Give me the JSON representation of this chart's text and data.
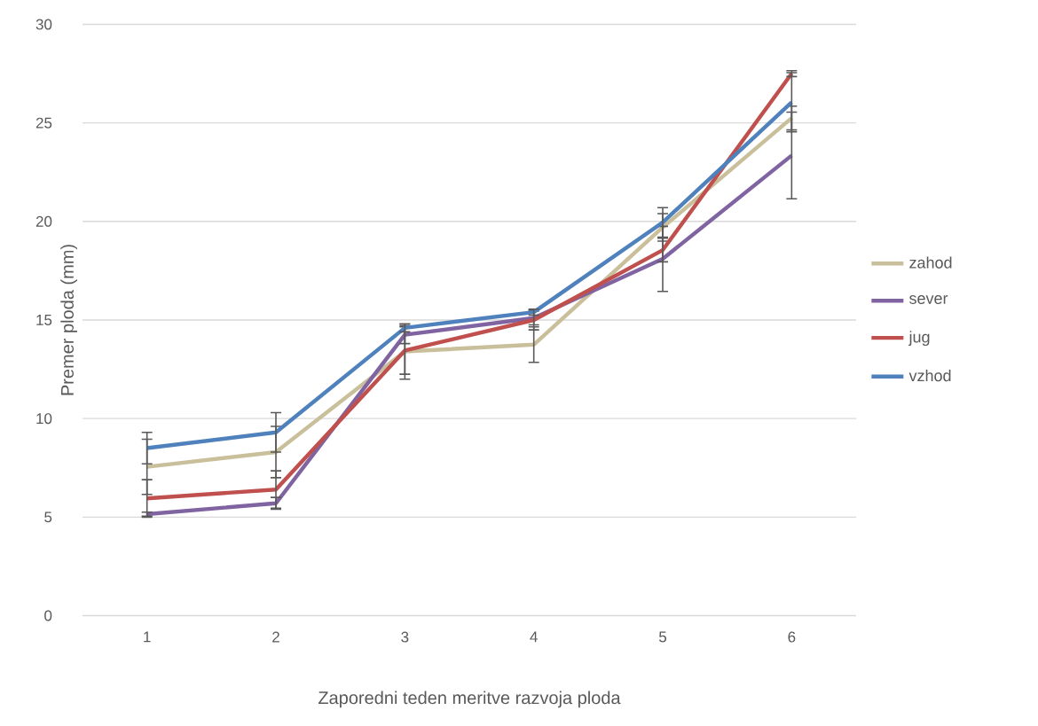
{
  "chart_data": {
    "type": "line",
    "xlabel": "Zaporedni teden meritve razvoja ploda",
    "ylabel": "Premer ploda (mm)",
    "categories": [
      "1",
      "2",
      "3",
      "4",
      "5",
      "6"
    ],
    "series": [
      {
        "name": "zahod",
        "color": "#c9bf9b",
        "values": [
          7.55,
          8.3,
          13.4,
          13.75,
          19.7,
          25.25
        ],
        "errors": [
          1.4,
          1.3,
          1.4,
          0.9,
          0.7,
          0.6
        ]
      },
      {
        "name": "sever",
        "color": "#8064a2",
        "values": [
          5.15,
          5.7,
          14.25,
          15.1,
          18.1,
          23.35
        ],
        "errors": [
          0.1,
          0.3,
          0.45,
          0.35,
          1.65,
          2.2
        ]
      },
      {
        "name": "jug",
        "color": "#c0504d",
        "values": [
          5.95,
          6.4,
          13.45,
          15.0,
          18.55,
          27.5
        ],
        "errors": [
          0.95,
          0.95,
          1.2,
          0.5,
          0.6,
          0.15
        ]
      },
      {
        "name": "vzhod",
        "color": "#4f81bd",
        "values": [
          8.5,
          9.3,
          14.6,
          15.4,
          19.95,
          26.05
        ],
        "errors": [
          0.8,
          1.0,
          0.2,
          0.15,
          0.75,
          1.5
        ]
      }
    ],
    "ylim": [
      0,
      30
    ],
    "yticks": [
      0,
      5,
      10,
      15,
      20,
      25,
      30
    ],
    "grid": "y",
    "legend": "right",
    "marker": "none",
    "line_style": "solid"
  }
}
